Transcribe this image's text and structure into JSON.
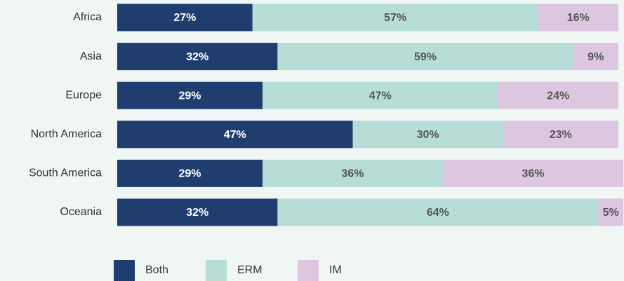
{
  "chart_data": {
    "type": "stacked-bar-horizontal",
    "categories": [
      "Africa",
      "Asia",
      "Europe",
      "North America",
      "South America",
      "Oceania"
    ],
    "series": [
      {
        "name": "Both",
        "color": "#1f3d6e",
        "values": [
          27,
          32,
          29,
          47,
          29,
          32
        ],
        "value_labels": [
          "27%",
          "32%",
          "29%",
          "47%",
          "29%",
          "32%"
        ]
      },
      {
        "name": "ERM",
        "color": "#b6ddd6",
        "values": [
          57,
          59,
          47,
          30,
          36,
          64
        ],
        "value_labels": [
          "57%",
          "59%",
          "47%",
          "30%",
          "36%",
          "64%"
        ]
      },
      {
        "name": "IM",
        "color": "#dcc6e0",
        "values": [
          16,
          9,
          24,
          23,
          36,
          5
        ],
        "value_labels": [
          "16%",
          "9%",
          "24%",
          "23%",
          "36%",
          "5%"
        ]
      }
    ],
    "xlim": [
      0,
      101
    ]
  }
}
